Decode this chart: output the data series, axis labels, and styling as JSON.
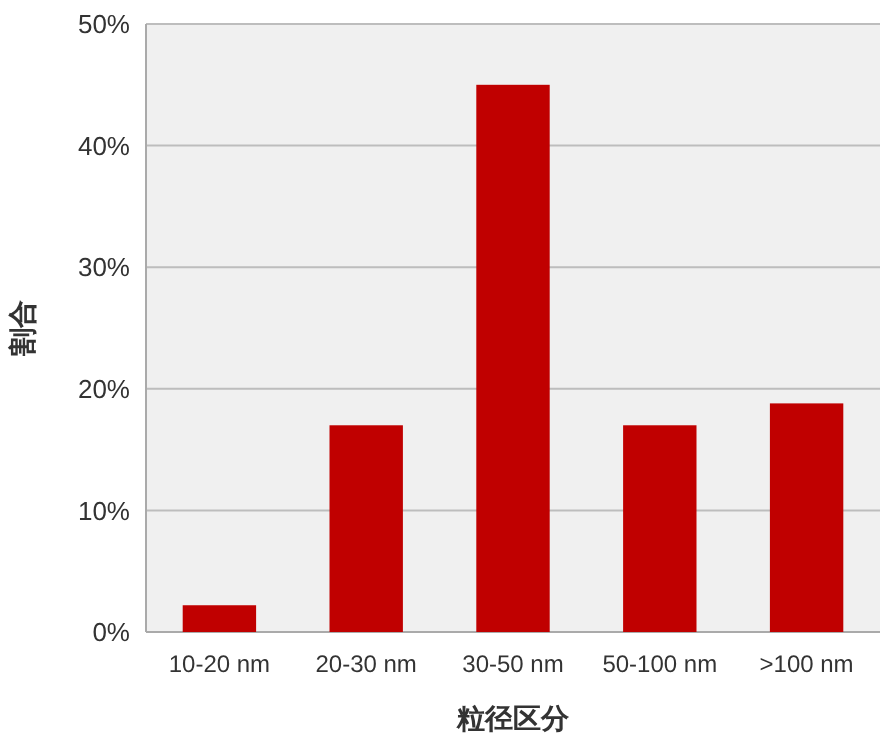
{
  "chart_data": {
    "type": "bar",
    "xlabel": "粒径区分",
    "ylabel": "割合",
    "categories": [
      "10-20 nm",
      "20-30 nm",
      "30-50 nm",
      "50-100 nm",
      ">100 nm"
    ],
    "values": [
      2.2,
      17,
      45,
      17,
      18.8
    ],
    "color": "#c00000",
    "ylim": [
      0,
      50
    ],
    "yticks": [
      {
        "value": 0,
        "label": "0%"
      },
      {
        "value": 10,
        "label": "10%"
      },
      {
        "value": 20,
        "label": "20%"
      },
      {
        "value": 30,
        "label": "30%"
      },
      {
        "value": 40,
        "label": "40%"
      },
      {
        "value": 50,
        "label": "50%"
      }
    ],
    "grid": "y"
  }
}
